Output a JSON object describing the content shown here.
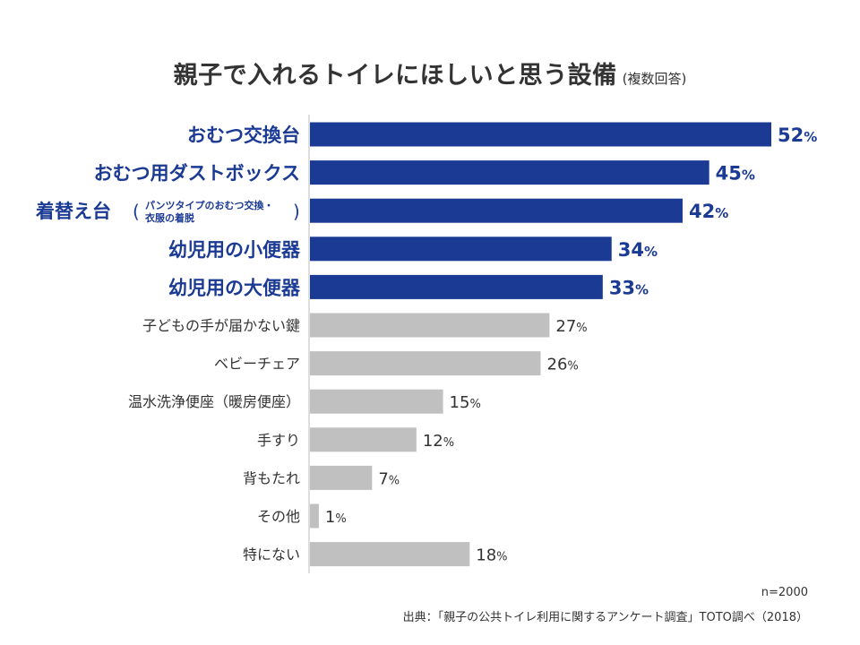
{
  "title": {
    "main": "親子で入れるトイレにほしいと思う設備",
    "sub": "(複数回答)"
  },
  "chart_data": {
    "type": "bar",
    "orientation": "horizontal",
    "categories": [
      "おむつ交換台",
      "おむつ用ダストボックス",
      "着替え台",
      "幼児用の小便器",
      "幼児用の大便器",
      "子どもの手が届かない鍵",
      "ベビーチェア",
      "温水洗浄便座（暖房便座）",
      "手すり",
      "背もたれ",
      "その他",
      "特にない"
    ],
    "category_notes": [
      "",
      "",
      "パンツタイプのおむつ交換・衣服の着脱",
      "",
      "",
      "",
      "",
      "",
      "",
      "",
      "",
      ""
    ],
    "values": [
      52,
      45,
      42,
      34,
      33,
      27,
      26,
      15,
      12,
      7,
      1,
      18
    ],
    "value_unit": "%",
    "highlight_count": 5,
    "colors": {
      "highlight": "#1b3a93",
      "normal": "#c0c0c0",
      "axis": "#bbbbbb"
    },
    "xlim": [
      0,
      52
    ]
  },
  "notes": {
    "n": "n=2000",
    "source": "出典：「親子の公共トイレ利用に関するアンケート調査」TOTO調べ（2018）"
  }
}
